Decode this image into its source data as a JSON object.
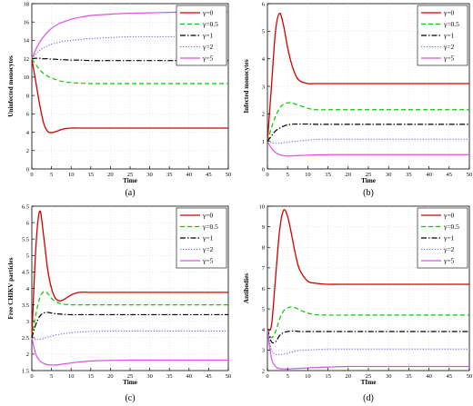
{
  "legend_labels": [
    "γ=0",
    "γ=0.5",
    "γ=1",
    "γ=2",
    "γ=5"
  ],
  "colors": {
    "g0": "#d00000",
    "g05": "#00cc00",
    "g1": "#000000",
    "g2": "#6b6bd6",
    "g5": "#e050e0"
  },
  "chart_data": [
    {
      "type": "line",
      "caption": "(a)",
      "xlabel": "Time",
      "ylabel": "Uninfected monocytes",
      "xlim": [
        0,
        50
      ],
      "ylim": [
        0,
        18
      ],
      "xticks": [
        0,
        5,
        10,
        15,
        20,
        25,
        30,
        35,
        40,
        45,
        50
      ],
      "yticks": [
        0,
        2,
        4,
        6,
        8,
        10,
        12,
        14,
        16,
        18
      ],
      "x": [
        0,
        1,
        2,
        3,
        4,
        5,
        6,
        7,
        8,
        10,
        12,
        15,
        20,
        25,
        30,
        40,
        50
      ],
      "series": [
        {
          "name": "γ=0",
          "values": [
            12,
            9.5,
            7.0,
            5.0,
            4.1,
            3.95,
            4.05,
            4.2,
            4.35,
            4.45,
            4.45,
            4.45,
            4.45,
            4.45,
            4.45,
            4.45,
            4.45
          ]
        },
        {
          "name": "γ=0.5",
          "values": [
            12,
            11.4,
            10.8,
            10.4,
            10.1,
            9.9,
            9.75,
            9.6,
            9.5,
            9.4,
            9.35,
            9.3,
            9.3,
            9.3,
            9.3,
            9.3,
            9.3
          ]
        },
        {
          "name": "γ=1",
          "values": [
            12,
            12.05,
            12.05,
            12.0,
            12.0,
            11.95,
            11.95,
            11.9,
            11.9,
            11.85,
            11.85,
            11.8,
            11.8,
            11.8,
            11.8,
            11.8,
            11.8
          ]
        },
        {
          "name": "γ=2",
          "values": [
            12,
            12.5,
            12.9,
            13.2,
            13.4,
            13.6,
            13.7,
            13.8,
            13.9,
            14.0,
            14.1,
            14.2,
            14.3,
            14.4,
            14.4,
            14.4,
            14.4
          ]
        },
        {
          "name": "γ=5",
          "values": [
            12,
            13.0,
            13.8,
            14.4,
            14.9,
            15.3,
            15.6,
            15.85,
            16.0,
            16.3,
            16.5,
            16.7,
            16.85,
            16.95,
            17.0,
            17.1,
            17.1
          ]
        }
      ]
    },
    {
      "type": "line",
      "caption": "(b)",
      "xlabel": "Time",
      "ylabel": "Infected monocytes",
      "xlim": [
        0,
        50
      ],
      "ylim": [
        0,
        6
      ],
      "xticks": [
        0,
        5,
        10,
        15,
        20,
        25,
        30,
        35,
        40,
        45,
        50
      ],
      "yticks": [
        0,
        1,
        2,
        3,
        4,
        5,
        6
      ],
      "x": [
        0,
        1,
        2,
        3,
        4,
        5,
        6,
        7,
        8,
        10,
        12,
        15,
        20,
        25,
        30,
        40,
        50
      ],
      "series": [
        {
          "name": "γ=0",
          "values": [
            1,
            3.0,
            5.0,
            5.65,
            5.2,
            4.4,
            3.8,
            3.4,
            3.2,
            3.1,
            3.1,
            3.1,
            3.1,
            3.1,
            3.1,
            3.1,
            3.1
          ]
        },
        {
          "name": "γ=0.5",
          "values": [
            1,
            1.5,
            1.9,
            2.2,
            2.35,
            2.4,
            2.4,
            2.35,
            2.3,
            2.2,
            2.15,
            2.15,
            2.15,
            2.15,
            2.15,
            2.15,
            2.15
          ]
        },
        {
          "name": "γ=1",
          "values": [
            1,
            1.2,
            1.38,
            1.48,
            1.55,
            1.6,
            1.62,
            1.63,
            1.63,
            1.63,
            1.62,
            1.62,
            1.62,
            1.62,
            1.62,
            1.62,
            1.62
          ]
        },
        {
          "name": "γ=2",
          "values": [
            1,
            0.95,
            0.93,
            0.93,
            0.95,
            0.97,
            0.99,
            1.0,
            1.02,
            1.05,
            1.07,
            1.08,
            1.08,
            1.08,
            1.08,
            1.08,
            1.08
          ]
        },
        {
          "name": "γ=5",
          "values": [
            1,
            0.75,
            0.6,
            0.52,
            0.48,
            0.47,
            0.47,
            0.48,
            0.49,
            0.5,
            0.51,
            0.52,
            0.52,
            0.52,
            0.52,
            0.52,
            0.52
          ]
        }
      ]
    },
    {
      "type": "line",
      "caption": "(c)",
      "xlabel": "Time",
      "ylabel": "Free CHIKV particles",
      "xlim": [
        0,
        50
      ],
      "ylim": [
        1.5,
        6.5
      ],
      "xticks": [
        0,
        5,
        10,
        15,
        20,
        25,
        30,
        35,
        40,
        45,
        50
      ],
      "yticks": [
        1.5,
        2,
        2.5,
        3,
        3.5,
        4,
        4.5,
        5,
        5.5,
        6,
        6.5
      ],
      "x": [
        0,
        1,
        2,
        3,
        4,
        5,
        6,
        7,
        8,
        10,
        12,
        15,
        20,
        25,
        30,
        40,
        50
      ],
      "series": [
        {
          "name": "γ=0",
          "values": [
            2.5,
            5.2,
            6.35,
            5.6,
            4.6,
            4.0,
            3.7,
            3.62,
            3.65,
            3.8,
            3.88,
            3.88,
            3.88,
            3.88,
            3.88,
            3.88,
            3.88
          ]
        },
        {
          "name": "γ=0.5",
          "values": [
            2.5,
            3.2,
            3.7,
            3.9,
            3.85,
            3.7,
            3.6,
            3.55,
            3.52,
            3.5,
            3.5,
            3.5,
            3.5,
            3.5,
            3.5,
            3.5,
            3.5
          ]
        },
        {
          "name": "γ=1",
          "values": [
            2.5,
            2.9,
            3.15,
            3.25,
            3.27,
            3.25,
            3.23,
            3.22,
            3.21,
            3.2,
            3.2,
            3.2,
            3.2,
            3.2,
            3.2,
            3.2,
            3.2
          ]
        },
        {
          "name": "γ=2",
          "values": [
            2.5,
            2.45,
            2.45,
            2.48,
            2.52,
            2.55,
            2.58,
            2.6,
            2.62,
            2.65,
            2.67,
            2.69,
            2.7,
            2.7,
            2.7,
            2.7,
            2.7
          ]
        },
        {
          "name": "γ=5",
          "values": [
            2.5,
            2.0,
            1.8,
            1.72,
            1.68,
            1.67,
            1.67,
            1.68,
            1.7,
            1.73,
            1.76,
            1.79,
            1.81,
            1.82,
            1.82,
            1.82,
            1.82
          ]
        }
      ]
    },
    {
      "type": "line",
      "caption": "(d)",
      "xlabel": "TIme",
      "ylabel": "Antibodies",
      "xlim": [
        0,
        50
      ],
      "ylim": [
        2,
        10
      ],
      "xticks": [
        0,
        5,
        10,
        15,
        20,
        25,
        30,
        35,
        40,
        45,
        50
      ],
      "yticks": [
        2,
        3,
        4,
        5,
        6,
        7,
        8,
        9,
        10
      ],
      "x": [
        0,
        1,
        2,
        3,
        4,
        5,
        6,
        7,
        8,
        10,
        12,
        15,
        20,
        25,
        30,
        40,
        50
      ],
      "series": [
        {
          "name": "γ=0",
          "values": [
            4,
            4.2,
            6.5,
            8.8,
            9.8,
            9.5,
            8.6,
            7.6,
            6.9,
            6.35,
            6.25,
            6.2,
            6.2,
            6.2,
            6.2,
            6.2,
            6.2
          ]
        },
        {
          "name": "γ=0.5",
          "values": [
            4,
            3.6,
            3.9,
            4.5,
            4.9,
            5.05,
            5.1,
            5.05,
            4.95,
            4.8,
            4.72,
            4.7,
            4.7,
            4.7,
            4.7,
            4.7,
            4.7
          ]
        },
        {
          "name": "γ=1",
          "values": [
            4,
            3.4,
            3.4,
            3.7,
            3.85,
            3.9,
            3.92,
            3.92,
            3.9,
            3.9,
            3.9,
            3.9,
            3.9,
            3.9,
            3.9,
            3.9,
            3.9
          ]
        },
        {
          "name": "γ=2",
          "values": [
            4,
            3.0,
            2.8,
            2.78,
            2.8,
            2.85,
            2.9,
            2.95,
            2.98,
            3.0,
            3.02,
            3.05,
            3.05,
            3.05,
            3.05,
            3.05,
            3.05
          ]
        },
        {
          "name": "γ=5",
          "values": [
            4,
            2.6,
            2.2,
            2.1,
            2.08,
            2.08,
            2.09,
            2.1,
            2.11,
            2.13,
            2.15,
            2.17,
            2.2,
            2.2,
            2.2,
            2.2,
            2.2
          ]
        }
      ]
    }
  ]
}
